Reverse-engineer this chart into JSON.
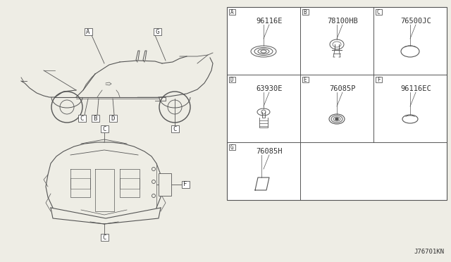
{
  "bg_color": "#eeede5",
  "border_color": "#555555",
  "line_color": "#555555",
  "text_color": "#333333",
  "part_number_label": "J76701KN",
  "parts": [
    {
      "id": "A",
      "part_num": "96116E",
      "col": 0,
      "row": 0
    },
    {
      "id": "B",
      "part_num": "78100HB",
      "col": 1,
      "row": 0
    },
    {
      "id": "C",
      "part_num": "76500JC",
      "col": 2,
      "row": 0
    },
    {
      "id": "D",
      "part_num": "63930E",
      "col": 0,
      "row": 1
    },
    {
      "id": "E",
      "part_num": "76085P",
      "col": 1,
      "row": 1
    },
    {
      "id": "F",
      "part_num": "96116EC",
      "col": 2,
      "row": 1
    },
    {
      "id": "G",
      "part_num": "76085H",
      "col": 0,
      "row": 2
    }
  ],
  "font_size_part": 6.0,
  "font_size_id": 5.5,
  "font_size_label": 6.5,
  "font_size_partnum": 7.5
}
